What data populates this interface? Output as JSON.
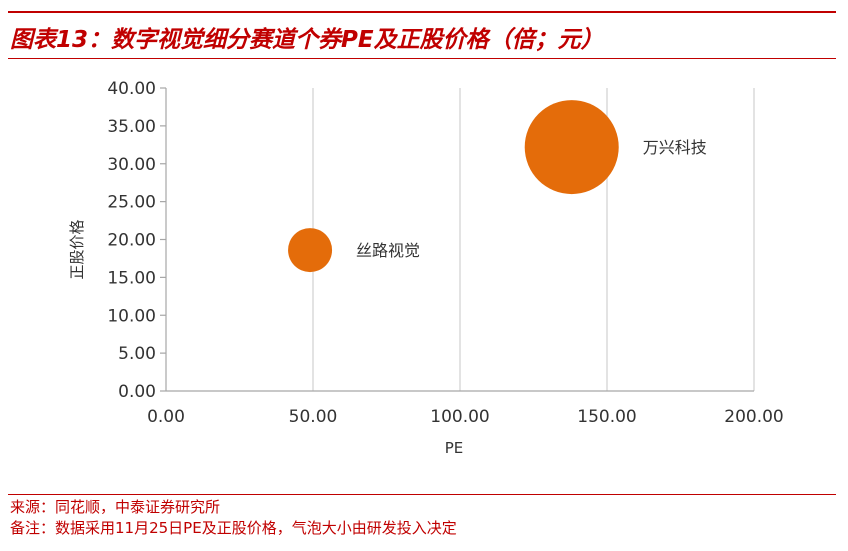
{
  "header": {
    "title": "图表13：数字视觉细分赛道个券PE及正股价格（倍；元）"
  },
  "chart_data": {
    "type": "scatter",
    "title": "",
    "xlabel": "PE",
    "ylabel": "正股价格",
    "xlim": [
      0,
      200
    ],
    "ylim": [
      0,
      40
    ],
    "x_ticks": [
      "0.00",
      "50.00",
      "100.00",
      "150.00",
      "200.00"
    ],
    "y_ticks": [
      "0.00",
      "5.00",
      "10.00",
      "15.00",
      "20.00",
      "25.00",
      "30.00",
      "35.00",
      "40.00"
    ],
    "grid": "vertical",
    "color": "#e46c0a",
    "points": [
      {
        "label": "丝路视觉",
        "x": 49,
        "y": 18.6,
        "bubble_size": 1.0
      },
      {
        "label": "万兴科技",
        "x": 138,
        "y": 32.2,
        "bubble_size": 2.2
      }
    ]
  },
  "footer": {
    "source": "来源：同花顺，中泰证券研究所",
    "note": "备注：数据采用11月25日PE及正股价格，气泡大小由研发投入决定"
  }
}
